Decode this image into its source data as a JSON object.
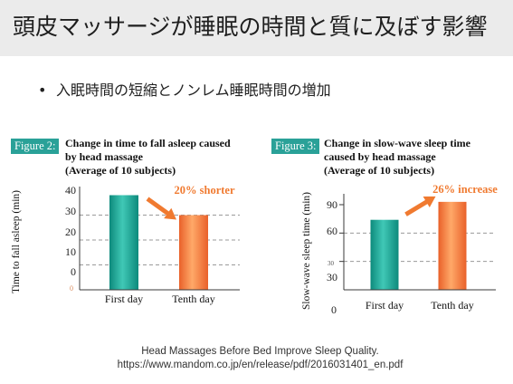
{
  "slide": {
    "title": "頭皮マッサージが睡眠の時間と質に及ぼす影響",
    "bullet_marker": "•",
    "bullet": "入眠時間の短縮とノンレム睡眠時間の増加",
    "source_lines": [
      "Head Massages Before Bed Improve Sleep Quality.",
      "https://www.mandom.co.jp/en/release/pdf/2016031401_en.pdf"
    ]
  },
  "colors": {
    "header_background": "#ebebeb",
    "figure_label": "#2aa198",
    "annotation": "#f07a30"
  },
  "chart_data": [
    {
      "figure_label": "Figure 2:",
      "type": "bar",
      "title_lines": [
        "Change in time to fall asleep caused",
        "by head massage",
        "(Average of 10 subjects)"
      ],
      "ylabel": "Time to fall asleep (min)",
      "categories": [
        "First day",
        "Tenth day"
      ],
      "values": [
        38,
        30
      ],
      "ylim": [
        0,
        40
      ],
      "ytick_labels": [
        "40",
        "30",
        "20",
        "10",
        "0",
        "0"
      ],
      "annotation": "20% shorter",
      "grid": "dashed",
      "bar_colors": [
        [
          "#0d8a7c",
          "#40c8b6"
        ],
        [
          "#e9612a",
          "#ffa868"
        ]
      ]
    },
    {
      "figure_label": "Figure 3:",
      "type": "bar",
      "title_lines": [
        "Change in slow-wave sleep time",
        "caused by head massage",
        "(Average of 10 subjects)"
      ],
      "ylabel": "Slow-wave sleep time (min)",
      "categories": [
        "First day",
        "Tenth day"
      ],
      "values": [
        74,
        93
      ],
      "ylim": [
        0,
        90
      ],
      "ytick_labels": [
        "90",
        "60",
        "30",
        "30",
        "0"
      ],
      "annotation": "26% increase",
      "grid": "dashed",
      "bar_colors": [
        [
          "#0d8a7c",
          "#40c8b6"
        ],
        [
          "#e9612a",
          "#ffa868"
        ]
      ]
    }
  ]
}
